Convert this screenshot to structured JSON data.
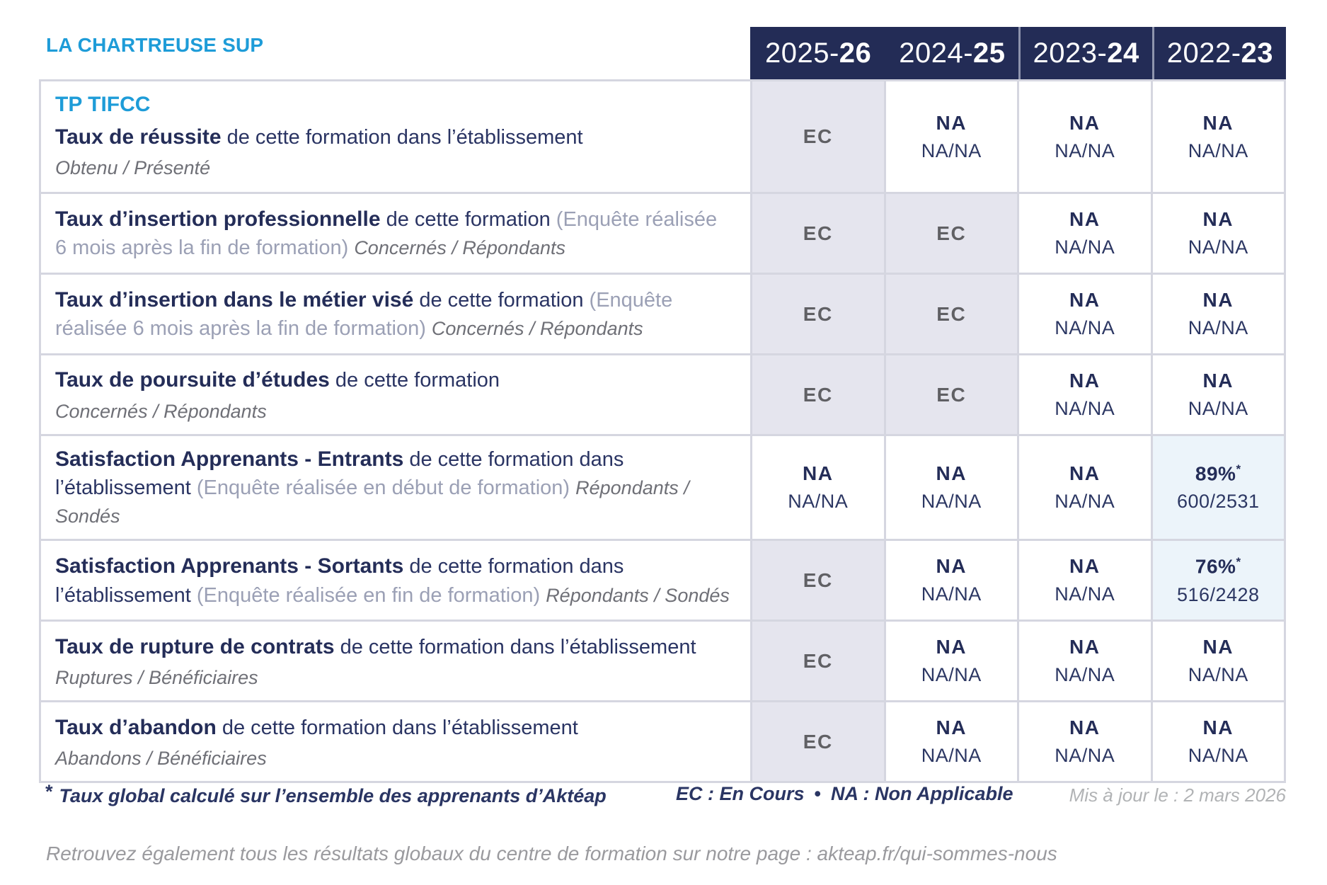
{
  "brand": "LA CHARTREUSE SUP",
  "header_years": [
    {
      "prefix": "2025-",
      "suffix": "26"
    },
    {
      "prefix": "2024-",
      "suffix": "25"
    },
    {
      "prefix": "2023-",
      "suffix": "24"
    },
    {
      "prefix": "2022-",
      "suffix": "23"
    }
  ],
  "program_title": "TP TIFCC",
  "rows": [
    {
      "title": "Taux de réussite",
      "mid": "de cette formation dans l’établissement",
      "sub": "Obtenu / Présenté",
      "cells": [
        {
          "value": "EC"
        },
        {
          "value": "NA",
          "detail": "NA/NA"
        },
        {
          "value": "NA",
          "detail": "NA/NA"
        },
        {
          "value": "NA",
          "detail": "NA/NA"
        }
      ]
    },
    {
      "title": "Taux d’insertion professionnelle",
      "mid": "de cette formation",
      "paren": "(Enquête réalisée 6 mois après la fin de formation)",
      "sub_inline": "Concernés / Répondants",
      "cells": [
        {
          "value": "EC"
        },
        {
          "value": "EC"
        },
        {
          "value": "NA",
          "detail": "NA/NA"
        },
        {
          "value": "NA",
          "detail": "NA/NA"
        }
      ]
    },
    {
      "title": "Taux d’insertion dans le métier visé",
      "mid": "de cette formation",
      "paren": "(Enquête réalisée 6 mois après la fin de formation)",
      "sub_inline": "Concernés / Répondants",
      "cells": [
        {
          "value": "EC"
        },
        {
          "value": "EC"
        },
        {
          "value": "NA",
          "detail": "NA/NA"
        },
        {
          "value": "NA",
          "detail": "NA/NA"
        }
      ]
    },
    {
      "title": "Taux de poursuite d’études",
      "mid": "de cette formation",
      "sub": "Concernés / Répondants",
      "cells": [
        {
          "value": "EC"
        },
        {
          "value": "EC"
        },
        {
          "value": "NA",
          "detail": "NA/NA"
        },
        {
          "value": "NA",
          "detail": "NA/NA"
        }
      ]
    },
    {
      "title": "Satisfaction Apprenants - Entrants",
      "mid": "de cette formation dans l’établissement",
      "paren": "(Enquête réalisée en début de formation)",
      "sub_inline": "Répondants / Sondés",
      "cells": [
        {
          "value": "NA",
          "detail": "NA/NA"
        },
        {
          "value": "NA",
          "detail": "NA/NA"
        },
        {
          "value": "NA",
          "detail": "NA/NA"
        },
        {
          "value": "89%",
          "star": "*",
          "detail": "600/2531"
        }
      ]
    },
    {
      "title": "Satisfaction Apprenants - Sortants",
      "mid": "de cette formation dans l’établissement",
      "paren": "(Enquête réalisée en fin de formation)",
      "sub_inline": "Répondants / Sondés",
      "cells": [
        {
          "value": "EC"
        },
        {
          "value": "NA",
          "detail": "NA/NA"
        },
        {
          "value": "NA",
          "detail": "NA/NA"
        },
        {
          "value": "76%",
          "star": "*",
          "detail": "516/2428"
        }
      ]
    },
    {
      "title": "Taux de rupture de contrats",
      "mid": "de cette formation dans l’établissement",
      "sub": "Ruptures / Bénéficiaires",
      "cells": [
        {
          "value": "EC"
        },
        {
          "value": "NA",
          "detail": "NA/NA"
        },
        {
          "value": "NA",
          "detail": "NA/NA"
        },
        {
          "value": "NA",
          "detail": "NA/NA"
        }
      ]
    },
    {
      "title": "Taux d’abandon",
      "mid": "de cette formation dans l’établissement",
      "sub": "Abandons / Bénéficiaires",
      "cells": [
        {
          "value": "EC"
        },
        {
          "value": "NA",
          "detail": "NA/NA"
        },
        {
          "value": "NA",
          "detail": "NA/NA"
        },
        {
          "value": "NA",
          "detail": "NA/NA"
        }
      ]
    }
  ],
  "footnote": {
    "star": "*",
    "text": "Taux global calculé sur l’ensemble des apprenants d’Aktéap"
  },
  "legend": {
    "ec": "EC : En Cours",
    "bullet": "•",
    "na": "NA : Non Applicable"
  },
  "updated": "Mis à jour le : 2 mars 2026",
  "bottom_note": "Retrouvez également tous les résultats globaux du centre de formation sur notre page : akteap.fr/qui-sommes-nous",
  "colors": {
    "navy": "#232C56",
    "light_blue": "#1E9CD8",
    "ec_bg": "#E5E5EE",
    "highlight_bg": "#ECF4FA",
    "border": "#D5D6E0",
    "gray_text": "#6F7077"
  }
}
